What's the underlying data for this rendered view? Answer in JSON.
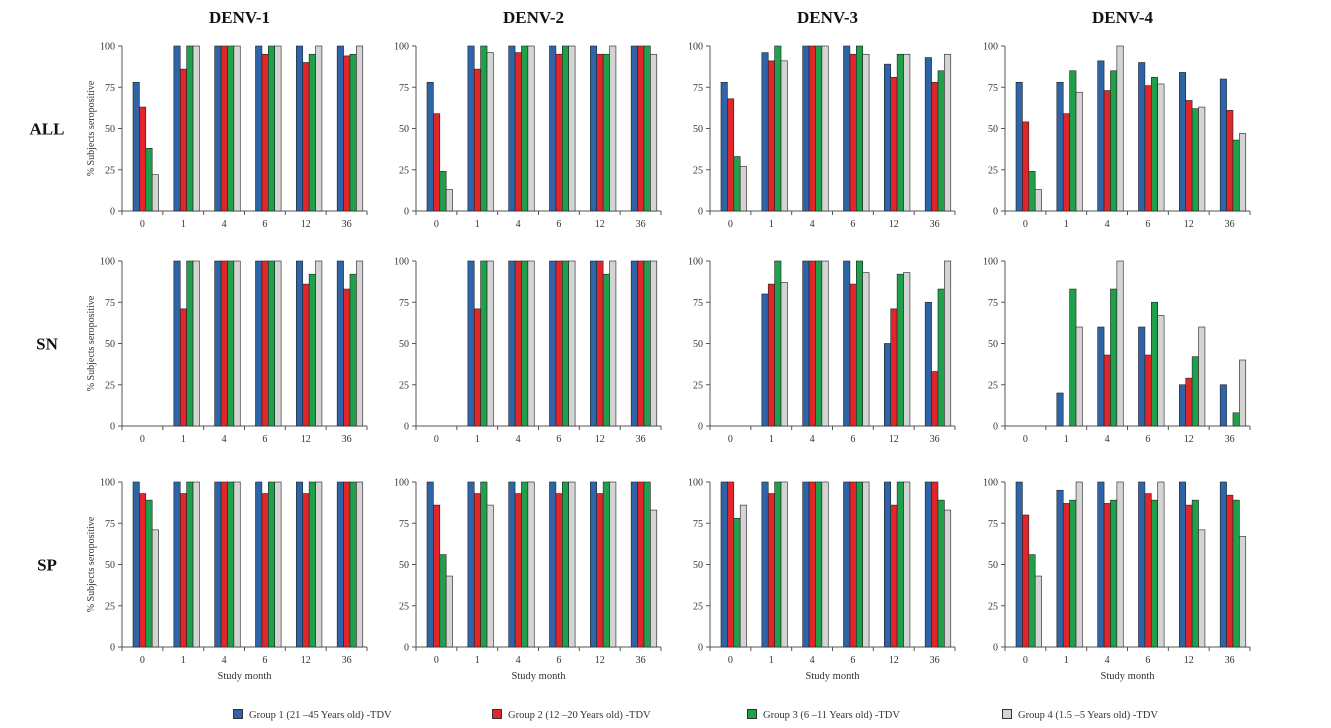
{
  "legend": [
    {
      "label": "Group 1 (21 –45 Years old) -TDV",
      "color": "#2f64a8"
    },
    {
      "label": "Group 2 (12 –20 Years old) -TDV",
      "color": "#e0262b"
    },
    {
      "label": "Group 3 (6 –11 Years old) -TDV",
      "color": "#21a04b"
    },
    {
      "label": "Group 4 (1.5 –5 Years old) -TDV",
      "color": "#d4d4d4"
    }
  ],
  "chart_data": {
    "type": "bar",
    "column_titles": [
      "DENV-1",
      "DENV-2",
      "DENV-3",
      "DENV-4"
    ],
    "row_labels": [
      "ALL",
      "SN",
      "SP"
    ],
    "categories": [
      "0",
      "1",
      "4",
      "6",
      "12",
      "36"
    ],
    "xlabel": "Study month",
    "ylabel": "% Subjects seropositive",
    "ylim": [
      0,
      100
    ],
    "yticks": [
      0,
      25,
      50,
      75,
      100
    ],
    "series_names": [
      "Group 1 (21 –45 Years old) -TDV",
      "Group 2 (12 –20 Years old) -TDV",
      "Group 3 (6 –11 Years old) -TDV",
      "Group 4 (1.5 –5 Years old) -TDV"
    ],
    "colors": [
      "#2f64a8",
      "#e0262b",
      "#21a04b",
      "#d4d4d4"
    ],
    "panels": [
      {
        "row": "ALL",
        "column": "DENV-1",
        "values": [
          [
            78,
            63,
            38,
            22
          ],
          [
            100,
            86,
            100,
            100
          ],
          [
            100,
            100,
            100,
            100
          ],
          [
            100,
            95,
            100,
            100
          ],
          [
            100,
            90,
            95,
            100
          ],
          [
            100,
            94,
            95,
            100
          ]
        ]
      },
      {
        "row": "ALL",
        "column": "DENV-2",
        "values": [
          [
            78,
            59,
            24,
            13
          ],
          [
            100,
            86,
            100,
            96
          ],
          [
            100,
            96,
            100,
            100
          ],
          [
            100,
            95,
            100,
            100
          ],
          [
            100,
            95,
            95,
            100
          ],
          [
            100,
            100,
            100,
            95
          ]
        ]
      },
      {
        "row": "ALL",
        "column": "DENV-3",
        "values": [
          [
            78,
            68,
            33,
            27
          ],
          [
            96,
            91,
            100,
            91
          ],
          [
            100,
            100,
            100,
            100
          ],
          [
            100,
            95,
            100,
            95
          ],
          [
            89,
            81,
            95,
            95
          ],
          [
            93,
            78,
            85,
            95
          ]
        ]
      },
      {
        "row": "ALL",
        "column": "DENV-4",
        "values": [
          [
            78,
            54,
            24,
            13
          ],
          [
            78,
            59,
            85,
            72
          ],
          [
            91,
            73,
            85,
            100
          ],
          [
            90,
            76,
            81,
            77
          ],
          [
            84,
            67,
            62,
            63
          ],
          [
            80,
            61,
            43,
            47
          ]
        ]
      },
      {
        "row": "SN",
        "column": "DENV-1",
        "values": [
          [
            0,
            0,
            0,
            0
          ],
          [
            100,
            71,
            100,
            100
          ],
          [
            100,
            100,
            100,
            100
          ],
          [
            100,
            100,
            100,
            100
          ],
          [
            100,
            86,
            92,
            100
          ],
          [
            100,
            83,
            92,
            100
          ]
        ]
      },
      {
        "row": "SN",
        "column": "DENV-2",
        "values": [
          [
            0,
            0,
            0,
            0
          ],
          [
            100,
            71,
            100,
            100
          ],
          [
            100,
            100,
            100,
            100
          ],
          [
            100,
            100,
            100,
            100
          ],
          [
            100,
            100,
            92,
            100
          ],
          [
            100,
            100,
            100,
            100
          ]
        ]
      },
      {
        "row": "SN",
        "column": "DENV-3",
        "values": [
          [
            0,
            0,
            0,
            0
          ],
          [
            80,
            86,
            100,
            87
          ],
          [
            100,
            100,
            100,
            100
          ],
          [
            100,
            86,
            100,
            93
          ],
          [
            50,
            71,
            92,
            93
          ],
          [
            75,
            33,
            83,
            100
          ]
        ]
      },
      {
        "row": "SN",
        "column": "DENV-4",
        "values": [
          [
            0,
            0,
            0,
            0
          ],
          [
            20,
            0,
            83,
            60
          ],
          [
            60,
            43,
            83,
            100
          ],
          [
            60,
            43,
            75,
            67
          ],
          [
            25,
            29,
            42,
            60
          ],
          [
            25,
            0,
            8,
            40
          ]
        ]
      },
      {
        "row": "SP",
        "column": "DENV-1",
        "values": [
          [
            100,
            93,
            89,
            71
          ],
          [
            100,
            93,
            100,
            100
          ],
          [
            100,
            100,
            100,
            100
          ],
          [
            100,
            93,
            100,
            100
          ],
          [
            100,
            93,
            100,
            100
          ],
          [
            100,
            100,
            100,
            100
          ]
        ]
      },
      {
        "row": "SP",
        "column": "DENV-2",
        "values": [
          [
            100,
            86,
            56,
            43
          ],
          [
            100,
            93,
            100,
            86
          ],
          [
            100,
            93,
            100,
            100
          ],
          [
            100,
            93,
            100,
            100
          ],
          [
            100,
            93,
            100,
            100
          ],
          [
            100,
            100,
            100,
            83
          ]
        ]
      },
      {
        "row": "SP",
        "column": "DENV-3",
        "values": [
          [
            100,
            100,
            78,
            86
          ],
          [
            100,
            93,
            100,
            100
          ],
          [
            100,
            100,
            100,
            100
          ],
          [
            100,
            100,
            100,
            100
          ],
          [
            100,
            86,
            100,
            100
          ],
          [
            100,
            100,
            89,
            83
          ]
        ]
      },
      {
        "row": "SP",
        "column": "DENV-4",
        "values": [
          [
            100,
            80,
            56,
            43
          ],
          [
            95,
            87,
            89,
            100
          ],
          [
            100,
            87,
            89,
            100
          ],
          [
            100,
            93,
            89,
            100
          ],
          [
            100,
            86,
            89,
            71
          ],
          [
            100,
            92,
            89,
            67
          ]
        ]
      }
    ]
  }
}
